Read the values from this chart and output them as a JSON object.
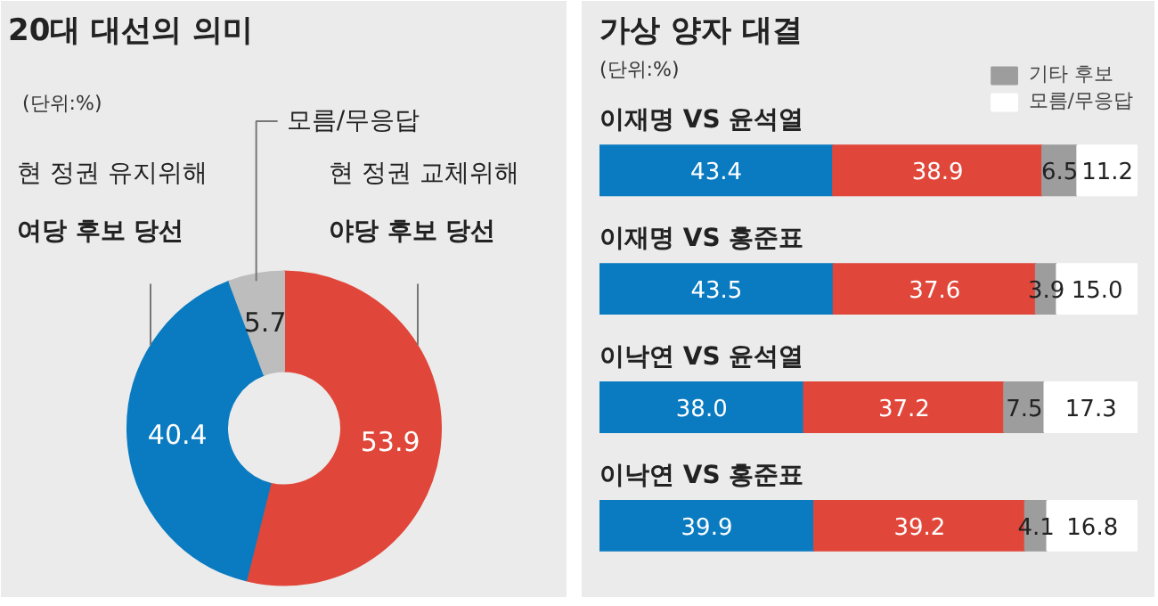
{
  "chart_data": [
    {
      "type": "donut",
      "title": "20대 대선의 의미",
      "subtitle": "(단위:%)",
      "categories": [
        "현 정권 교체위해\n야당 후보 당선",
        "현 정권 유지위해\n여당 후보 당선",
        "모름/무응답"
      ],
      "values": [
        53.9,
        40.4,
        5.7
      ],
      "colors": [
        "#e0473a",
        "#0a7bc1",
        "#bdbdbd"
      ],
      "data_labels": true
    },
    {
      "type": "bar",
      "orientation": "horizontal",
      "stacked": true,
      "title": "가상 양자 대결",
      "subtitle": "(단위:%)",
      "categories": [
        "이재명 VS 윤석열",
        "이재명 VS 홍준표",
        "이낙연 VS 윤석열",
        "이낙연 VS 홍준표"
      ],
      "legend": "top right",
      "series": [
        {
          "color": "#0a7bc1",
          "values": [
            43.4,
            43.5,
            38.0,
            39.9
          ],
          "value_labels": [
            "43.4",
            "43.5",
            "38.0",
            "39.9"
          ]
        },
        {
          "color": "#e0473a",
          "values": [
            38.9,
            37.6,
            37.2,
            39.2
          ],
          "value_labels": [
            "38.9",
            "37.6",
            "37.2",
            "39.2"
          ]
        },
        {
          "name": "기타 후보",
          "color": "#9d9d9d",
          "values": [
            6.5,
            3.9,
            7.5,
            4.1
          ],
          "value_labels": [
            "6.5",
            "3.9",
            "7.5",
            "4.1"
          ]
        },
        {
          "name": "모름/무응답",
          "color": "#ffffff",
          "values": [
            11.2,
            15.0,
            17.3,
            16.8
          ],
          "value_labels": [
            "11.2",
            "15.0",
            "17.3",
            "16.8"
          ]
        }
      ]
    }
  ]
}
